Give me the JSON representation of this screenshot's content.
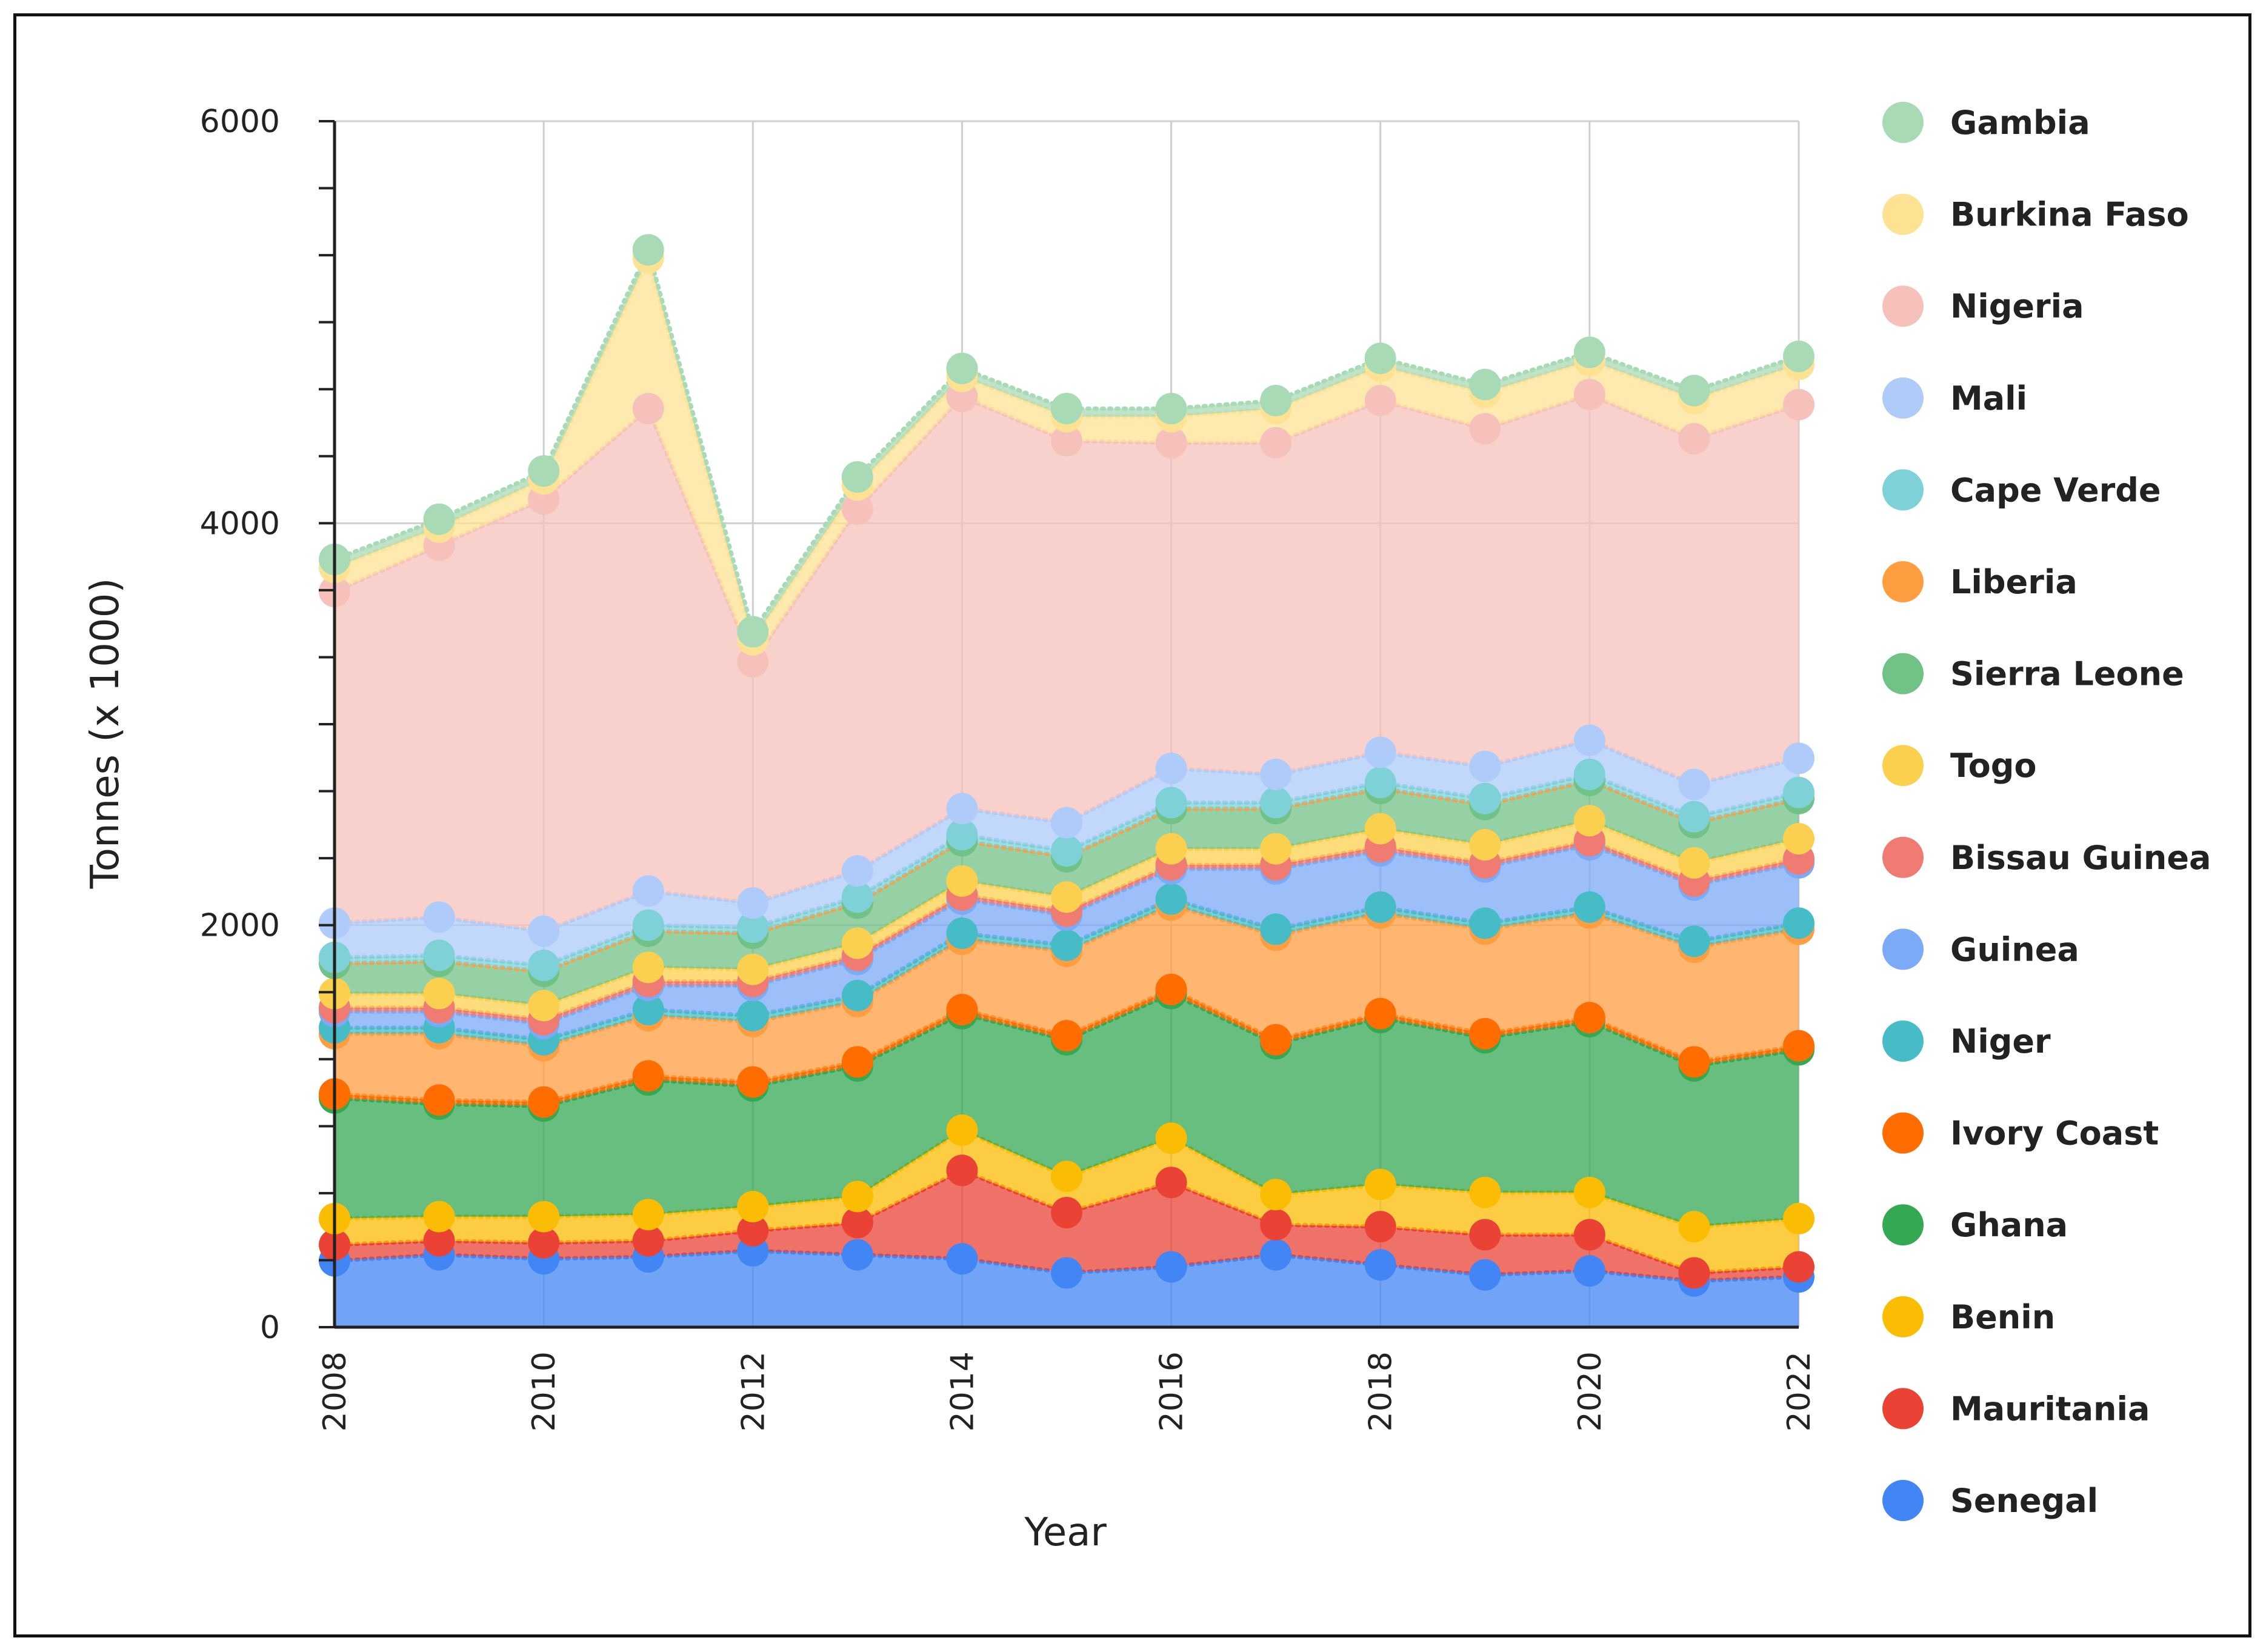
{
  "chart_data": {
    "type": "area",
    "stacked": true,
    "title": "",
    "xlabel": "Year",
    "ylabel": "Tonnes (x 1000)",
    "xlim": [
      2008,
      2022
    ],
    "ylim": [
      0,
      6000
    ],
    "x_ticks": [
      "2008",
      "2010",
      "2012",
      "2014",
      "2016",
      "2018",
      "2020",
      "2022"
    ],
    "y_ticks": [
      "0",
      "2000",
      "4000",
      "6000"
    ],
    "grid": true,
    "legend_position": "right",
    "x": [
      2008,
      2009,
      2010,
      2011,
      2012,
      2013,
      2014,
      2015,
      2016,
      2017,
      2018,
      2019,
      2020,
      2021,
      2022
    ],
    "series": [
      {
        "name": "Senegal",
        "color": "#4285F4",
        "values": [
          330,
          360,
          340,
          350,
          380,
          360,
          340,
          270,
          300,
          360,
          310,
          260,
          280,
          230,
          250
        ]
      },
      {
        "name": "Mauritania",
        "color": "#EA4335",
        "values": [
          80,
          70,
          80,
          80,
          100,
          160,
          440,
          300,
          420,
          150,
          190,
          200,
          180,
          40,
          50
        ]
      },
      {
        "name": "Benin",
        "color": "#FBBC04",
        "values": [
          130,
          120,
          130,
          130,
          120,
          130,
          200,
          180,
          220,
          150,
          210,
          210,
          210,
          230,
          240
        ]
      },
      {
        "name": "Ghana",
        "color": "#34A853",
        "values": [
          600,
          560,
          550,
          670,
          600,
          650,
          580,
          680,
          720,
          750,
          830,
          770,
          850,
          800,
          840
        ]
      },
      {
        "name": "Ivory Coast",
        "color": "#FF6D01",
        "values": [
          20,
          20,
          20,
          20,
          20,
          20,
          20,
          20,
          20,
          20,
          20,
          20,
          20,
          20,
          20
        ]
      },
      {
        "name": "Liberia",
        "color": "#FF9E40",
        "values": [
          300,
          330,
          280,
          300,
          300,
          300,
          350,
          420,
          420,
          520,
          500,
          520,
          520,
          570,
          580
        ]
      },
      {
        "name": "Niger",
        "color": "#46BDC6",
        "values": [
          30,
          30,
          30,
          30,
          30,
          30,
          30,
          30,
          30,
          30,
          30,
          30,
          30,
          30,
          30
        ]
      },
      {
        "name": "Guinea",
        "color": "#7BAAF7",
        "values": [
          80,
          80,
          80,
          120,
          150,
          180,
          170,
          150,
          150,
          300,
          280,
          280,
          310,
          280,
          300
        ]
      },
      {
        "name": "Bissau Guinea",
        "color": "#F07B72",
        "values": [
          20,
          20,
          20,
          20,
          20,
          20,
          20,
          20,
          20,
          20,
          20,
          20,
          20,
          20,
          20
        ]
      },
      {
        "name": "Togo",
        "color": "#FCD04F",
        "values": [
          70,
          70,
          70,
          70,
          60,
          60,
          70,
          70,
          80,
          80,
          90,
          90,
          100,
          90,
          100
        ]
      },
      {
        "name": "Sierra Leone",
        "color": "#71C287",
        "values": [
          150,
          160,
          170,
          180,
          180,
          200,
          200,
          200,
          200,
          200,
          200,
          200,
          200,
          200,
          200
        ]
      },
      {
        "name": "Liberia",
        "color": "#FF9E40",
        "values": [
          0,
          0,
          0,
          0,
          0,
          0,
          0,
          0,
          0,
          0,
          0,
          0,
          0,
          0,
          0
        ]
      },
      {
        "name": "Cape Verde",
        "color": "#7ED1D7",
        "values": [
          30,
          30,
          30,
          30,
          30,
          30,
          30,
          30,
          30,
          30,
          30,
          30,
          30,
          30,
          30
        ]
      },
      {
        "name": "Mali",
        "color": "#AECBFA",
        "values": [
          170,
          190,
          170,
          170,
          120,
          130,
          130,
          140,
          170,
          140,
          150,
          160,
          170,
          160,
          170
        ]
      },
      {
        "name": "Nigeria",
        "color": "#F7C1BB",
        "values": [
          1650,
          1850,
          2150,
          2400,
          1200,
          1800,
          2050,
          1900,
          1620,
          1650,
          1750,
          1680,
          1720,
          1720,
          1760
        ]
      },
      {
        "name": "Burkina Faso",
        "color": "#FDE293",
        "values": [
          120,
          90,
          100,
          750,
          110,
          120,
          100,
          120,
          130,
          170,
          170,
          180,
          170,
          200,
          200
        ]
      },
      {
        "name": "Gambia",
        "color": "#A8DAB5",
        "values": [
          40,
          40,
          40,
          40,
          40,
          40,
          40,
          40,
          40,
          40,
          40,
          40,
          40,
          40,
          40
        ]
      }
    ],
    "legend": [
      {
        "name": "Gambia",
        "color": "#A8DAB5"
      },
      {
        "name": "Burkina Faso",
        "color": "#FDE293"
      },
      {
        "name": "Nigeria",
        "color": "#F7C1BB"
      },
      {
        "name": "Mali",
        "color": "#AECBFA"
      },
      {
        "name": "Cape Verde",
        "color": "#7ED1D7"
      },
      {
        "name": "Liberia",
        "color": "#FF9E40"
      },
      {
        "name": "Sierra Leone",
        "color": "#71C287"
      },
      {
        "name": "Togo",
        "color": "#FCD04F"
      },
      {
        "name": "Bissau Guinea",
        "color": "#F07B72"
      },
      {
        "name": "Guinea",
        "color": "#7BAAF7"
      },
      {
        "name": "Niger",
        "color": "#46BDC6"
      },
      {
        "name": "Ivory Coast",
        "color": "#FF6D01"
      },
      {
        "name": "Ghana",
        "color": "#34A853"
      },
      {
        "name": "Benin",
        "color": "#FBBC04"
      },
      {
        "name": "Mauritania",
        "color": "#EA4335"
      },
      {
        "name": "Senegal",
        "color": "#4285F4"
      }
    ]
  }
}
